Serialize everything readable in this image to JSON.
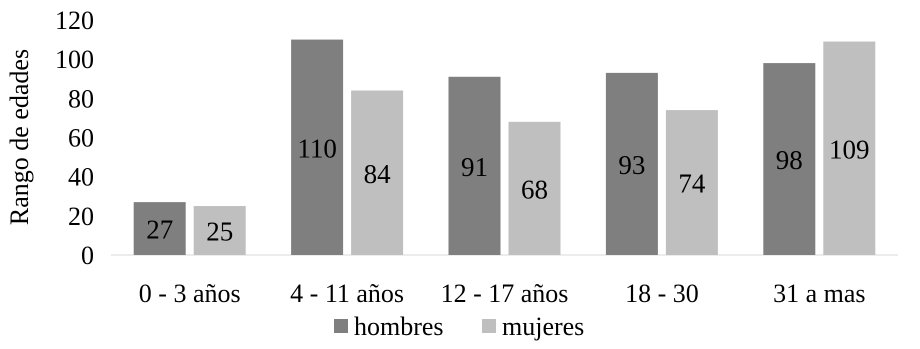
{
  "chart_data": {
    "type": "bar",
    "categories": [
      "0 - 3 años",
      "4 - 11 años",
      "12 - 17 años",
      "18 - 30",
      "31 a mas"
    ],
    "series": [
      {
        "name": "hombres",
        "values": [
          27,
          110,
          91,
          93,
          98
        ],
        "color": "#7f7f7f"
      },
      {
        "name": "mujeres",
        "values": [
          25,
          84,
          68,
          74,
          109
        ],
        "color": "#bfbfbf"
      }
    ],
    "ylabel": "Rango de edades",
    "xlabel": "",
    "title": "",
    "ylim": [
      0,
      120
    ],
    "yticks": [
      0,
      20,
      40,
      60,
      80,
      100,
      120
    ],
    "grid": false,
    "legend_position": "bottom",
    "data_labels": true
  }
}
